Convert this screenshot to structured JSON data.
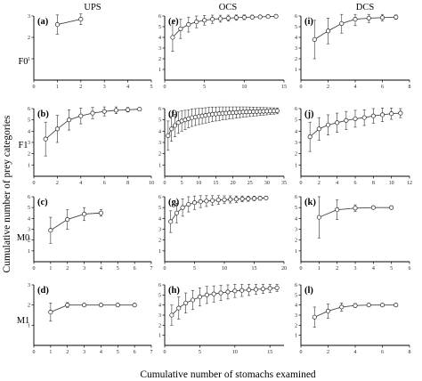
{
  "figure": {
    "column_titles": [
      "UPS",
      "OCS",
      "DCS"
    ],
    "row_labels": [
      "F0",
      "F1",
      "M0",
      "M1"
    ],
    "xlabel": "Cumulative number of stomachs examined",
    "ylabel": "Cumulative number of prey categories"
  },
  "chart_data": [
    {
      "id": "a",
      "tag": "(a)",
      "type": "line",
      "row": 0,
      "col": 0,
      "xlim": [
        0,
        5
      ],
      "ylim": [
        0,
        3
      ],
      "xticks": [
        0,
        1,
        2,
        3,
        4,
        5
      ],
      "yticks": [
        1,
        2,
        3
      ],
      "x": [
        1,
        2
      ],
      "y": [
        2.6,
        2.85
      ],
      "err": [
        0.45,
        0.25
      ]
    },
    {
      "id": "e",
      "tag": "(e)",
      "type": "line",
      "row": 0,
      "col": 1,
      "xlim": [
        0,
        15
      ],
      "ylim": [
        0,
        6
      ],
      "xticks": [
        0,
        5,
        10,
        15
      ],
      "yticks": [
        1,
        2,
        3,
        4,
        5,
        6
      ],
      "x": [
        1,
        2,
        3,
        4,
        5,
        6,
        7,
        8,
        9,
        10,
        11,
        12,
        13,
        14
      ],
      "y": [
        4.0,
        4.8,
        5.2,
        5.45,
        5.6,
        5.7,
        5.75,
        5.8,
        5.85,
        5.88,
        5.9,
        5.92,
        5.95,
        5.97
      ],
      "err": [
        1.3,
        0.9,
        0.7,
        0.55,
        0.45,
        0.38,
        0.32,
        0.28,
        0.25,
        0.22,
        0.18,
        0.15,
        0.12,
        0.1
      ]
    },
    {
      "id": "i",
      "tag": "(i)",
      "type": "line",
      "row": 0,
      "col": 2,
      "xlim": [
        0,
        8
      ],
      "ylim": [
        0,
        6
      ],
      "xticks": [
        0,
        2,
        4,
        6,
        8
      ],
      "yticks": [
        1,
        2,
        3,
        4,
        5,
        6
      ],
      "x": [
        1,
        2,
        3,
        4,
        5,
        6,
        7
      ],
      "y": [
        3.8,
        4.6,
        5.3,
        5.7,
        5.8,
        5.85,
        5.9
      ],
      "err": [
        1.8,
        1.2,
        0.9,
        0.6,
        0.4,
        0.3,
        0.2
      ]
    },
    {
      "id": "b",
      "tag": "(b)",
      "type": "line",
      "row": 1,
      "col": 0,
      "xlim": [
        0,
        10
      ],
      "ylim": [
        0,
        6
      ],
      "xticks": [
        0,
        2,
        4,
        6,
        8,
        10
      ],
      "yticks": [
        1,
        2,
        3,
        4,
        5,
        6
      ],
      "x": [
        1,
        2,
        3,
        4,
        5,
        6,
        7,
        8,
        9
      ],
      "y": [
        3.3,
        4.2,
        5.0,
        5.35,
        5.6,
        5.75,
        5.85,
        5.9,
        5.95
      ],
      "err": [
        1.5,
        1.2,
        0.9,
        0.7,
        0.5,
        0.4,
        0.3,
        0.2,
        0.15
      ]
    },
    {
      "id": "f",
      "tag": "(f)",
      "type": "line",
      "row": 1,
      "col": 1,
      "xlim": [
        0,
        35
      ],
      "ylim": [
        0,
        6
      ],
      "xticks": [
        0,
        5,
        10,
        15,
        20,
        25,
        30,
        35
      ],
      "yticks": [
        1,
        2,
        3,
        4,
        5,
        6
      ],
      "x": [
        1,
        2,
        3,
        4,
        5,
        6,
        7,
        8,
        9,
        10,
        11,
        12,
        13,
        14,
        15,
        16,
        17,
        18,
        19,
        20,
        21,
        22,
        23,
        24,
        25,
        26,
        27,
        28,
        29,
        30,
        31,
        32,
        33
      ],
      "y": [
        3.6,
        4.2,
        4.5,
        4.75,
        4.9,
        5.0,
        5.1,
        5.2,
        5.25,
        5.3,
        5.35,
        5.4,
        5.45,
        5.5,
        5.52,
        5.55,
        5.58,
        5.6,
        5.62,
        5.64,
        5.66,
        5.68,
        5.7,
        5.71,
        5.72,
        5.73,
        5.74,
        5.75,
        5.76,
        5.77,
        5.78,
        5.79,
        5.8
      ],
      "err": [
        1.3,
        1.1,
        1.0,
        0.95,
        0.9,
        0.85,
        0.8,
        0.78,
        0.75,
        0.72,
        0.7,
        0.68,
        0.66,
        0.64,
        0.62,
        0.6,
        0.58,
        0.56,
        0.54,
        0.52,
        0.5,
        0.48,
        0.46,
        0.44,
        0.42,
        0.4,
        0.38,
        0.36,
        0.34,
        0.32,
        0.3,
        0.28,
        0.26
      ]
    },
    {
      "id": "j",
      "tag": "(j)",
      "type": "line",
      "row": 1,
      "col": 2,
      "xlim": [
        0,
        12
      ],
      "ylim": [
        0,
        6
      ],
      "xticks": [
        0,
        2,
        4,
        6,
        8,
        10,
        12
      ],
      "yticks": [
        1,
        2,
        3,
        4,
        5,
        6
      ],
      "x": [
        1,
        2,
        3,
        4,
        5,
        6,
        7,
        8,
        9,
        10,
        11
      ],
      "y": [
        3.5,
        4.2,
        4.55,
        4.75,
        4.95,
        5.1,
        5.2,
        5.35,
        5.45,
        5.55,
        5.6
      ],
      "err": [
        1.3,
        1.0,
        0.9,
        0.85,
        0.8,
        0.75,
        0.7,
        0.65,
        0.6,
        0.5,
        0.4
      ]
    },
    {
      "id": "c",
      "tag": "(c)",
      "type": "line",
      "row": 2,
      "col": 0,
      "xlim": [
        0,
        7
      ],
      "ylim": [
        0,
        6
      ],
      "xticks": [
        0,
        1,
        2,
        3,
        4,
        5,
        6,
        7
      ],
      "yticks": [
        1,
        2,
        3,
        4,
        5,
        6
      ],
      "x": [
        1,
        2,
        3,
        4
      ],
      "y": [
        2.9,
        3.9,
        4.4,
        4.5
      ],
      "err": [
        1.2,
        0.9,
        0.6,
        0.3
      ]
    },
    {
      "id": "g",
      "tag": "(g)",
      "type": "line",
      "row": 2,
      "col": 1,
      "xlim": [
        0,
        20
      ],
      "ylim": [
        0,
        6
      ],
      "xticks": [
        0,
        5,
        10,
        15,
        20
      ],
      "yticks": [
        1,
        2,
        3,
        4,
        5,
        6
      ],
      "x": [
        1,
        2,
        3,
        4,
        5,
        6,
        7,
        8,
        9,
        10,
        11,
        12,
        13,
        14,
        15,
        16,
        17
      ],
      "y": [
        3.7,
        4.5,
        5.0,
        5.3,
        5.45,
        5.55,
        5.6,
        5.65,
        5.7,
        5.72,
        5.75,
        5.77,
        5.8,
        5.82,
        5.84,
        5.86,
        5.88
      ],
      "err": [
        1.0,
        0.9,
        0.8,
        0.7,
        0.62,
        0.55,
        0.5,
        0.45,
        0.4,
        0.36,
        0.33,
        0.3,
        0.27,
        0.24,
        0.21,
        0.18,
        0.15
      ]
    },
    {
      "id": "k",
      "tag": "(k)",
      "type": "line",
      "row": 2,
      "col": 2,
      "xlim": [
        0,
        6
      ],
      "ylim": [
        0,
        6
      ],
      "xticks": [
        0,
        1,
        2,
        3,
        4,
        5,
        6
      ],
      "yticks": [
        1,
        2,
        3,
        4,
        5,
        6
      ],
      "x": [
        1,
        2,
        3,
        4,
        5
      ],
      "y": [
        4.1,
        4.8,
        4.95,
        5.0,
        5.0
      ],
      "err": [
        1.9,
        0.9,
        0.3,
        0.1,
        0.05
      ]
    },
    {
      "id": "d",
      "tag": "(d)",
      "type": "line",
      "row": 3,
      "col": 0,
      "xlim": [
        0,
        7
      ],
      "ylim": [
        0,
        3
      ],
      "xticks": [
        0,
        1,
        2,
        3,
        4,
        5,
        6,
        7
      ],
      "yticks": [
        1,
        2,
        3
      ],
      "x": [
        1,
        2,
        3,
        4,
        5,
        6
      ],
      "y": [
        1.65,
        2.0,
        2.0,
        2.0,
        2.0,
        2.0
      ],
      "err": [
        0.45,
        0.12,
        0.05,
        0.03,
        0.02,
        0.02
      ]
    },
    {
      "id": "h",
      "tag": "(h)",
      "type": "line",
      "row": 3,
      "col": 1,
      "xlim": [
        0,
        17
      ],
      "ylim": [
        0,
        6
      ],
      "xticks": [
        0,
        5,
        10,
        15
      ],
      "yticks": [
        1,
        2,
        3,
        4,
        5,
        6
      ],
      "x": [
        1,
        2,
        3,
        4,
        5,
        6,
        7,
        8,
        9,
        10,
        11,
        12,
        13,
        14,
        15,
        16
      ],
      "y": [
        3.0,
        3.7,
        4.2,
        4.5,
        4.8,
        5.0,
        5.1,
        5.2,
        5.3,
        5.4,
        5.45,
        5.5,
        5.55,
        5.6,
        5.65,
        5.7
      ],
      "err": [
        1.0,
        1.1,
        1.0,
        0.95,
        0.9,
        0.85,
        0.8,
        0.75,
        0.7,
        0.65,
        0.6,
        0.55,
        0.5,
        0.45,
        0.4,
        0.35
      ]
    },
    {
      "id": "l",
      "tag": "(l)",
      "type": "line",
      "row": 3,
      "col": 2,
      "xlim": [
        0,
        8
      ],
      "ylim": [
        0,
        6
      ],
      "xticks": [
        0,
        2,
        4,
        6,
        8
      ],
      "yticks": [
        1,
        2,
        3,
        4,
        5,
        6
      ],
      "x": [
        1,
        2,
        3,
        4,
        5,
        6,
        7
      ],
      "y": [
        2.8,
        3.4,
        3.8,
        3.95,
        4.0,
        4.0,
        4.0
      ],
      "err": [
        1.0,
        0.7,
        0.4,
        0.2,
        0.1,
        0.05,
        0.05
      ]
    }
  ]
}
